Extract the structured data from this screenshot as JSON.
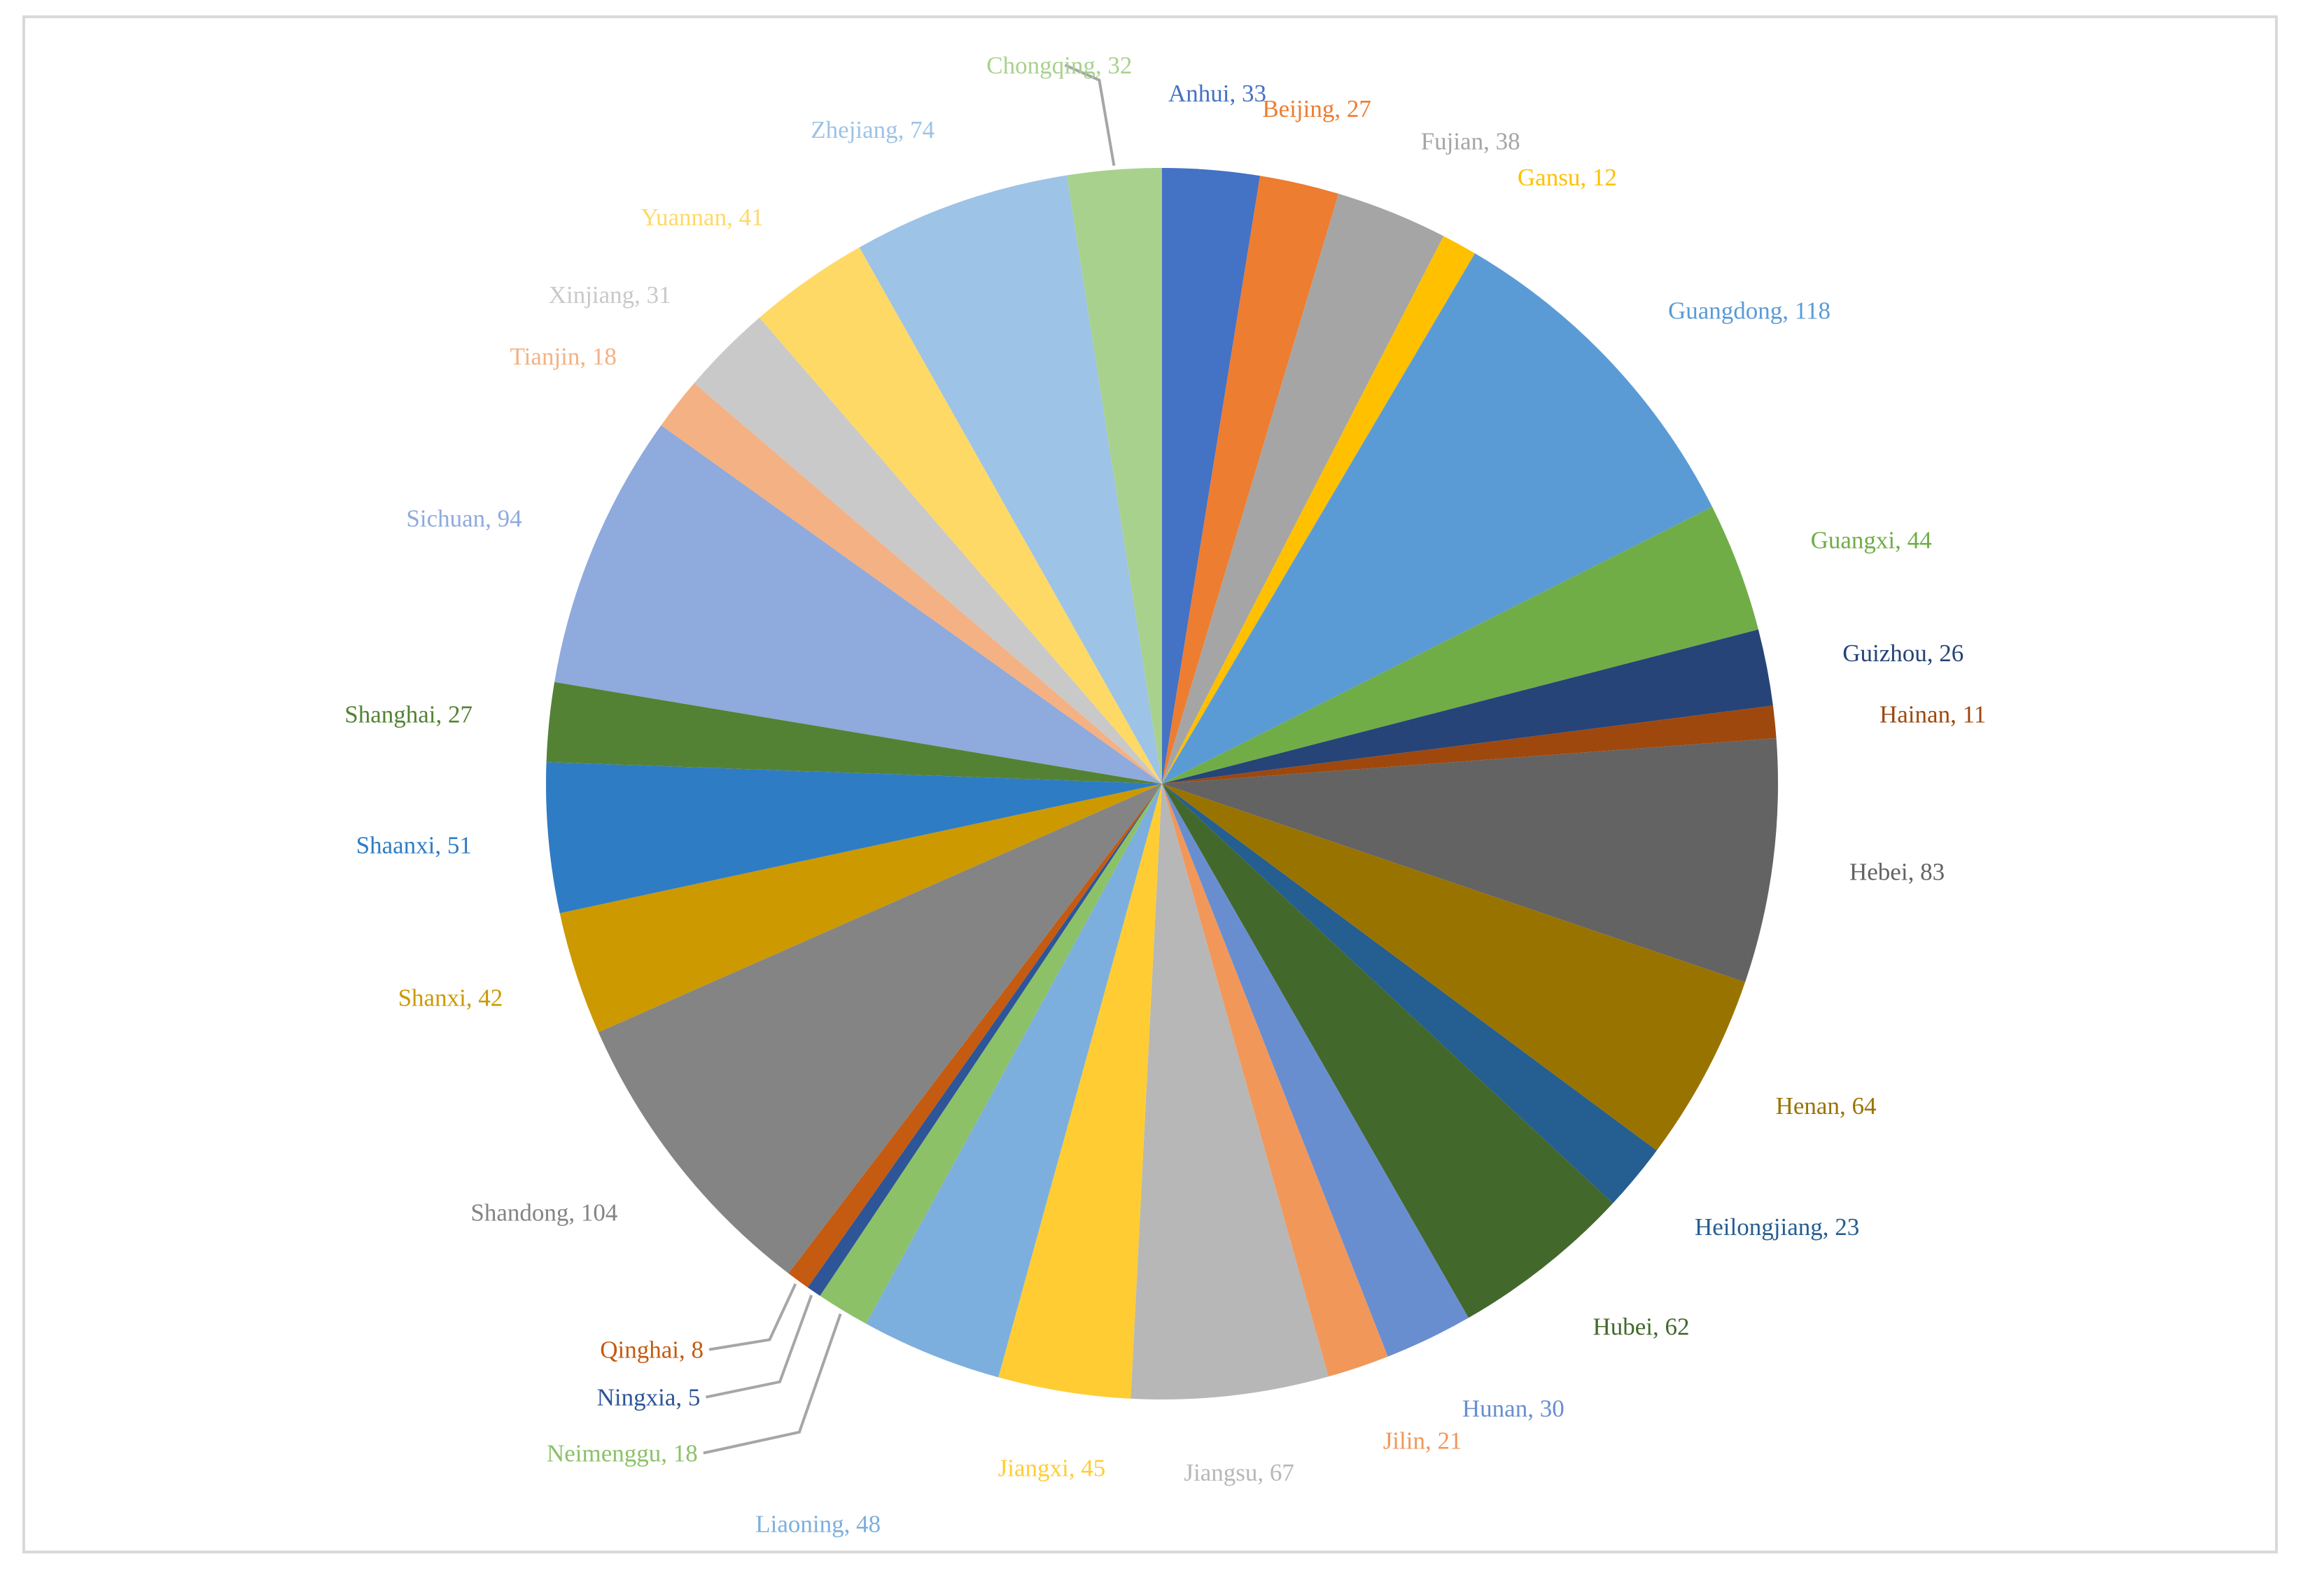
{
  "chart_data": {
    "type": "pie",
    "title": "",
    "label_format": "{name}, {value}",
    "slices": [
      {
        "name": "Anhui",
        "value": 33,
        "color": "#4472C4"
      },
      {
        "name": "Beijing",
        "value": 27,
        "color": "#ED7D31"
      },
      {
        "name": "Fujian",
        "value": 38,
        "color": "#A5A5A5"
      },
      {
        "name": "Gansu",
        "value": 12,
        "color": "#FFC000"
      },
      {
        "name": "Guangdong",
        "value": 118,
        "color": "#5B9BD5"
      },
      {
        "name": "Guangxi",
        "value": 44,
        "color": "#70AD47"
      },
      {
        "name": "Guizhou",
        "value": 26,
        "color": "#264478"
      },
      {
        "name": "Hainan",
        "value": 11,
        "color": "#9E480E"
      },
      {
        "name": "Hebei",
        "value": 83,
        "color": "#636363"
      },
      {
        "name": "Henan",
        "value": 64,
        "color": "#997300"
      },
      {
        "name": "Heilongjiang",
        "value": 23,
        "color": "#255E91"
      },
      {
        "name": "Hubei",
        "value": 62,
        "color": "#43682B"
      },
      {
        "name": "Hunan",
        "value": 30,
        "color": "#698ED0"
      },
      {
        "name": "Jilin",
        "value": 21,
        "color": "#F1975A"
      },
      {
        "name": "Jiangsu",
        "value": 67,
        "color": "#B7B7B7"
      },
      {
        "name": "Jiangxi",
        "value": 45,
        "color": "#FFCD33"
      },
      {
        "name": "Liaoning",
        "value": 48,
        "color": "#7CAFDD"
      },
      {
        "name": "Neimenggu",
        "value": 18,
        "color": "#8CC168"
      },
      {
        "name": "Ningxia",
        "value": 5,
        "color": "#2E5597"
      },
      {
        "name": "Qinghai",
        "value": 8,
        "color": "#C55A11"
      },
      {
        "name": "Shandong",
        "value": 104,
        "color": "#848484"
      },
      {
        "name": "Shanxi",
        "value": 42,
        "color": "#CC9900"
      },
      {
        "name": "Shaanxi",
        "value": 51,
        "color": "#2E7CC4"
      },
      {
        "name": "Shanghai",
        "value": 27,
        "color": "#548235"
      },
      {
        "name": "Sichuan",
        "value": 94,
        "color": "#8FAADC"
      },
      {
        "name": "Tianjin",
        "value": 18,
        "color": "#F4B183"
      },
      {
        "name": "Xinjiang",
        "value": 31,
        "color": "#C9C9C9"
      },
      {
        "name": "Yuannan",
        "value": 41,
        "color": "#FFD966"
      },
      {
        "name": "Zhejiang",
        "value": 74,
        "color": "#9DC3E6"
      },
      {
        "name": "Chongqing",
        "value": 32,
        "color": "#A9D18E"
      }
    ]
  }
}
